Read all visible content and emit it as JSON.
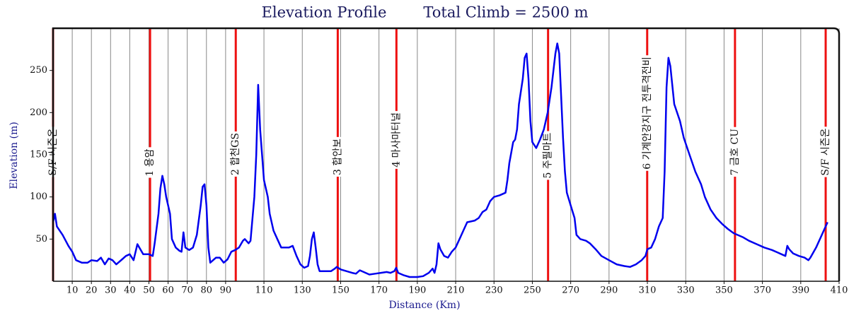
{
  "chart_data": {
    "type": "line",
    "title": "Elevation Profile",
    "subtitle": "Total Climb = 2500 m",
    "xlabel": "Distance (Km)",
    "ylabel": "Elevation (m)",
    "color": "#0000ee",
    "marker_color": "#ee1111",
    "grid": true,
    "xlim": [
      0,
      410
    ],
    "ylim": [
      0,
      300
    ],
    "xticks": [
      10,
      20,
      30,
      40,
      50,
      60,
      70,
      80,
      90,
      110,
      130,
      150,
      170,
      190,
      210,
      230,
      250,
      270,
      290,
      310,
      330,
      350,
      370,
      390,
      410
    ],
    "yticks": [
      50,
      100,
      150,
      200,
      250
    ],
    "x": [
      0,
      1,
      2,
      5,
      8,
      10,
      12,
      15,
      18,
      20,
      23,
      25,
      27,
      29,
      31,
      33,
      36,
      38,
      40,
      42,
      44,
      45,
      47,
      50,
      52,
      53,
      55,
      56,
      57,
      58,
      59,
      61,
      62,
      64,
      66,
      67,
      68,
      69,
      71,
      73,
      75,
      77,
      78,
      79,
      80,
      81,
      82,
      85,
      87,
      89,
      91,
      93,
      95,
      97,
      99,
      100,
      102,
      103,
      105,
      106,
      107,
      108,
      109,
      110,
      112,
      113,
      115,
      117,
      119,
      121,
      123,
      125,
      127,
      129,
      131,
      133,
      134,
      135,
      136,
      137,
      138,
      139,
      142,
      145,
      147,
      148,
      150,
      153,
      156,
      158,
      160,
      162,
      165,
      168,
      171,
      174,
      176,
      178,
      179,
      180,
      183,
      186,
      190,
      193,
      196,
      198,
      199,
      200,
      201,
      202,
      204,
      206,
      208,
      210,
      212,
      214,
      216,
      220,
      222,
      224,
      226,
      228,
      230,
      233,
      236,
      237,
      238,
      240,
      241,
      242,
      243,
      245,
      246,
      247,
      248,
      249,
      250,
      252,
      254,
      256,
      258,
      259,
      260,
      262,
      263,
      264,
      265,
      266,
      267,
      268,
      270,
      272,
      273,
      275,
      278,
      280,
      283,
      286,
      290,
      294,
      298,
      301,
      304,
      307,
      309,
      310,
      312,
      314,
      316,
      318,
      319,
      320,
      321,
      322,
      324,
      327,
      329,
      332,
      335,
      338,
      340,
      343,
      346,
      349,
      352,
      355,
      357,
      360,
      363,
      367,
      371,
      375,
      378,
      380,
      382,
      383,
      384,
      386,
      389,
      392,
      394,
      395,
      398,
      401,
      403,
      404
    ],
    "values": [
      70,
      80,
      65,
      55,
      42,
      35,
      25,
      22,
      22,
      25,
      24,
      28,
      20,
      27,
      25,
      20,
      26,
      30,
      32,
      25,
      44,
      40,
      32,
      32,
      30,
      45,
      80,
      110,
      125,
      115,
      100,
      80,
      50,
      40,
      36,
      35,
      58,
      40,
      37,
      40,
      55,
      90,
      112,
      115,
      90,
      40,
      22,
      28,
      28,
      22,
      26,
      35,
      37,
      40,
      48,
      50,
      45,
      48,
      100,
      150,
      233,
      180,
      150,
      120,
      100,
      80,
      60,
      50,
      40,
      40,
      40,
      42,
      30,
      20,
      16,
      18,
      30,
      50,
      58,
      40,
      20,
      12,
      12,
      12,
      15,
      17,
      14,
      12,
      10,
      9,
      13,
      11,
      8,
      9,
      10,
      11,
      10,
      12,
      16,
      10,
      7,
      5,
      5,
      6,
      10,
      15,
      10,
      20,
      45,
      38,
      30,
      28,
      35,
      40,
      50,
      60,
      70,
      72,
      75,
      82,
      85,
      95,
      100,
      102,
      105,
      120,
      140,
      165,
      168,
      180,
      210,
      240,
      265,
      270,
      240,
      190,
      165,
      158,
      168,
      180,
      200,
      215,
      230,
      270,
      282,
      270,
      220,
      170,
      130,
      105,
      90,
      75,
      55,
      50,
      48,
      45,
      38,
      30,
      25,
      20,
      18,
      17,
      20,
      25,
      30,
      38,
      40,
      50,
      65,
      75,
      130,
      230,
      265,
      255,
      210,
      190,
      170,
      150,
      130,
      115,
      100,
      85,
      75,
      68,
      62,
      57,
      55,
      52,
      48,
      44,
      40,
      37,
      34,
      32,
      30,
      42,
      38,
      33,
      30,
      28,
      25,
      28,
      40,
      55,
      65,
      70
    ],
    "markers": [
      {
        "label": "S/F 시즌온",
        "x": 0
      },
      {
        "label": "1 용암",
        "x": 50.6
      },
      {
        "label": "2 합천GS",
        "x": 95.3
      },
      {
        "label": "3 합안보",
        "x": 148.5
      },
      {
        "label": "4 마사마터널",
        "x": 179.1
      },
      {
        "label": "5 주필마트",
        "x": 258.2
      },
      {
        "label": "6 기계안강지구 전투격전비",
        "x": 309.9
      },
      {
        "label": "7 금호 CU",
        "x": 355.7
      },
      {
        "label": "S/F 시즌온",
        "x": 403
      }
    ]
  }
}
